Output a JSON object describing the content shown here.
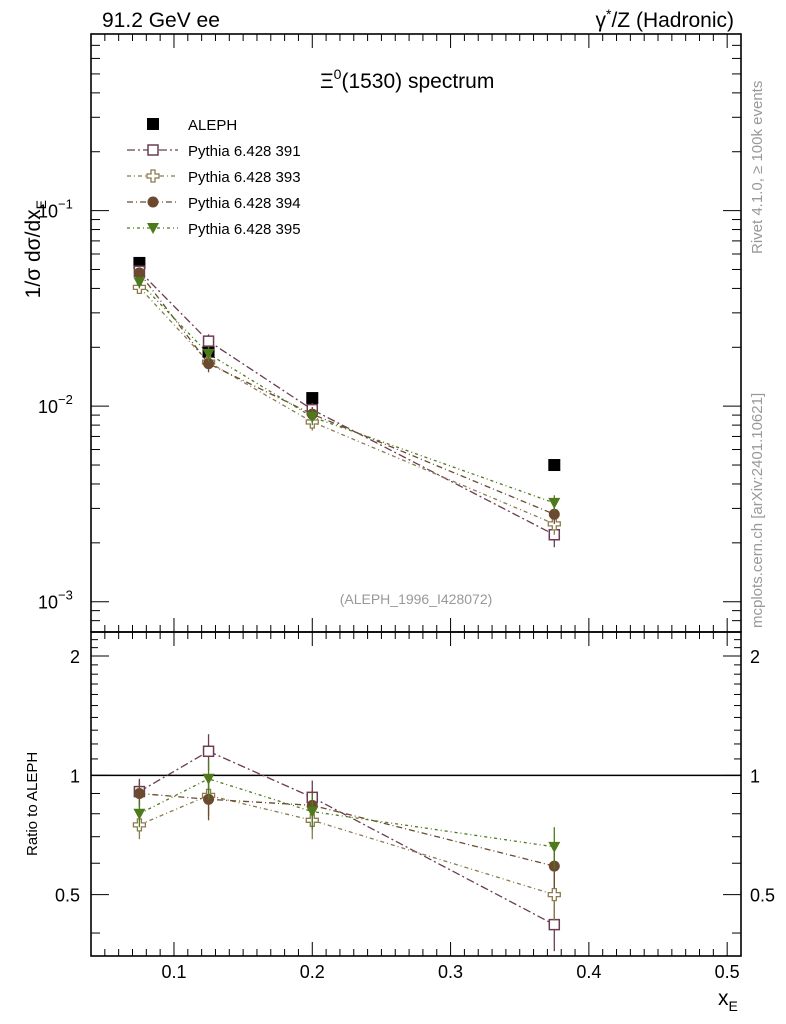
{
  "header": {
    "left": "91.2 GeV ee",
    "right_pre": "γ",
    "right_sup": "*",
    "right_post": "/Z (Hadronic)"
  },
  "side_labels": {
    "rivet": "Rivet 4.1.0, ≥ 100k events",
    "mcplots": "mcplots.cern.ch [arXiv:2401.10621]"
  },
  "watermark": "(ALEPH_1996_I428072)",
  "ylabel_top": {
    "pre": "1/σ  dσ/dx",
    "sub": "E"
  },
  "ylabel_bottom": "Ratio to ALEPH",
  "xlabel": {
    "main": "x",
    "sub": "E"
  },
  "colors": {
    "data": "#000000",
    "p391": "#6b3d52",
    "p393": "#8b7b4e",
    "p394": "#6b4a30",
    "p395": "#4e7a1c"
  },
  "chart_data": [
    {
      "type": "scatter",
      "title_pre": "Ξ",
      "title_sup": "0",
      "title_post": "(1530) spectrum",
      "yscale": "log",
      "ylim": [
        0.0007,
        0.8
      ],
      "xlim": [
        0.04,
        0.51
      ],
      "yticks": [
        {
          "value": 0.1,
          "base": "10",
          "exp": "−1"
        },
        {
          "value": 0.01,
          "base": "10",
          "exp": "−2"
        },
        {
          "value": 0.001,
          "base": "10",
          "exp": "−3"
        }
      ],
      "x": [
        0.075,
        0.125,
        0.2,
        0.375
      ],
      "series": [
        {
          "key": "data",
          "name": "ALEPH",
          "marker": "square-filled",
          "values": [
            0.054,
            0.019,
            0.011,
            0.005
          ],
          "errors": [
            0.003,
            0.0015,
            0.0006,
            0.0003
          ]
        },
        {
          "key": "p391",
          "name": "Pythia 6.428 391",
          "marker": "square-open",
          "values": [
            0.049,
            0.0215,
            0.0096,
            0.0022
          ],
          "errors": [
            0.003,
            0.0018,
            0.0008,
            0.0003
          ]
        },
        {
          "key": "p393",
          "name": "Pythia 6.428 393",
          "marker": "cross-open",
          "values": [
            0.0405,
            0.0168,
            0.0083,
            0.0025
          ],
          "errors": [
            0.003,
            0.0016,
            0.0008,
            0.0003
          ]
        },
        {
          "key": "p394",
          "name": "Pythia 6.428 394",
          "marker": "circle-filled",
          "values": [
            0.048,
            0.0165,
            0.0091,
            0.0028
          ],
          "errors": [
            0.003,
            0.0016,
            0.0008,
            0.0003
          ]
        },
        {
          "key": "p395",
          "name": "Pythia 6.428 395",
          "marker": "triangle-down",
          "values": [
            0.043,
            0.0185,
            0.0088,
            0.0032
          ],
          "errors": [
            0.003,
            0.0017,
            0.0008,
            0.0003
          ]
        }
      ]
    },
    {
      "type": "scatter",
      "title": "Ratio to ALEPH",
      "ylim": [
        0.35,
        2.3
      ],
      "xlim": [
        0.04,
        0.51
      ],
      "yticks": [
        0.5,
        1,
        2
      ],
      "xticks": [
        0.1,
        0.2,
        0.3,
        0.4,
        0.5
      ],
      "xtick_labels": [
        "0.1",
        "0.2",
        "0.3",
        "0.4",
        "0.5"
      ],
      "reference_line": 1,
      "x": [
        0.075,
        0.125,
        0.2,
        0.375
      ],
      "series": [
        {
          "key": "p391",
          "name": "Pythia 6.428 391",
          "marker": "square-open",
          "values": [
            0.91,
            1.15,
            0.88,
            0.42
          ],
          "errors": [
            0.07,
            0.12,
            0.09,
            0.06
          ]
        },
        {
          "key": "p393",
          "name": "Pythia 6.428 393",
          "marker": "cross-open",
          "values": [
            0.75,
            0.89,
            0.77,
            0.5
          ],
          "errors": [
            0.06,
            0.1,
            0.08,
            0.07
          ]
        },
        {
          "key": "p394",
          "name": "Pythia 6.428 394",
          "marker": "circle-filled",
          "values": [
            0.9,
            0.87,
            0.84,
            0.59
          ],
          "errors": [
            0.07,
            0.1,
            0.08,
            0.07
          ]
        },
        {
          "key": "p395",
          "name": "Pythia 6.428 395",
          "marker": "triangle-down",
          "values": [
            0.8,
            0.98,
            0.81,
            0.66
          ],
          "errors": [
            0.06,
            0.11,
            0.08,
            0.08
          ]
        }
      ]
    }
  ]
}
